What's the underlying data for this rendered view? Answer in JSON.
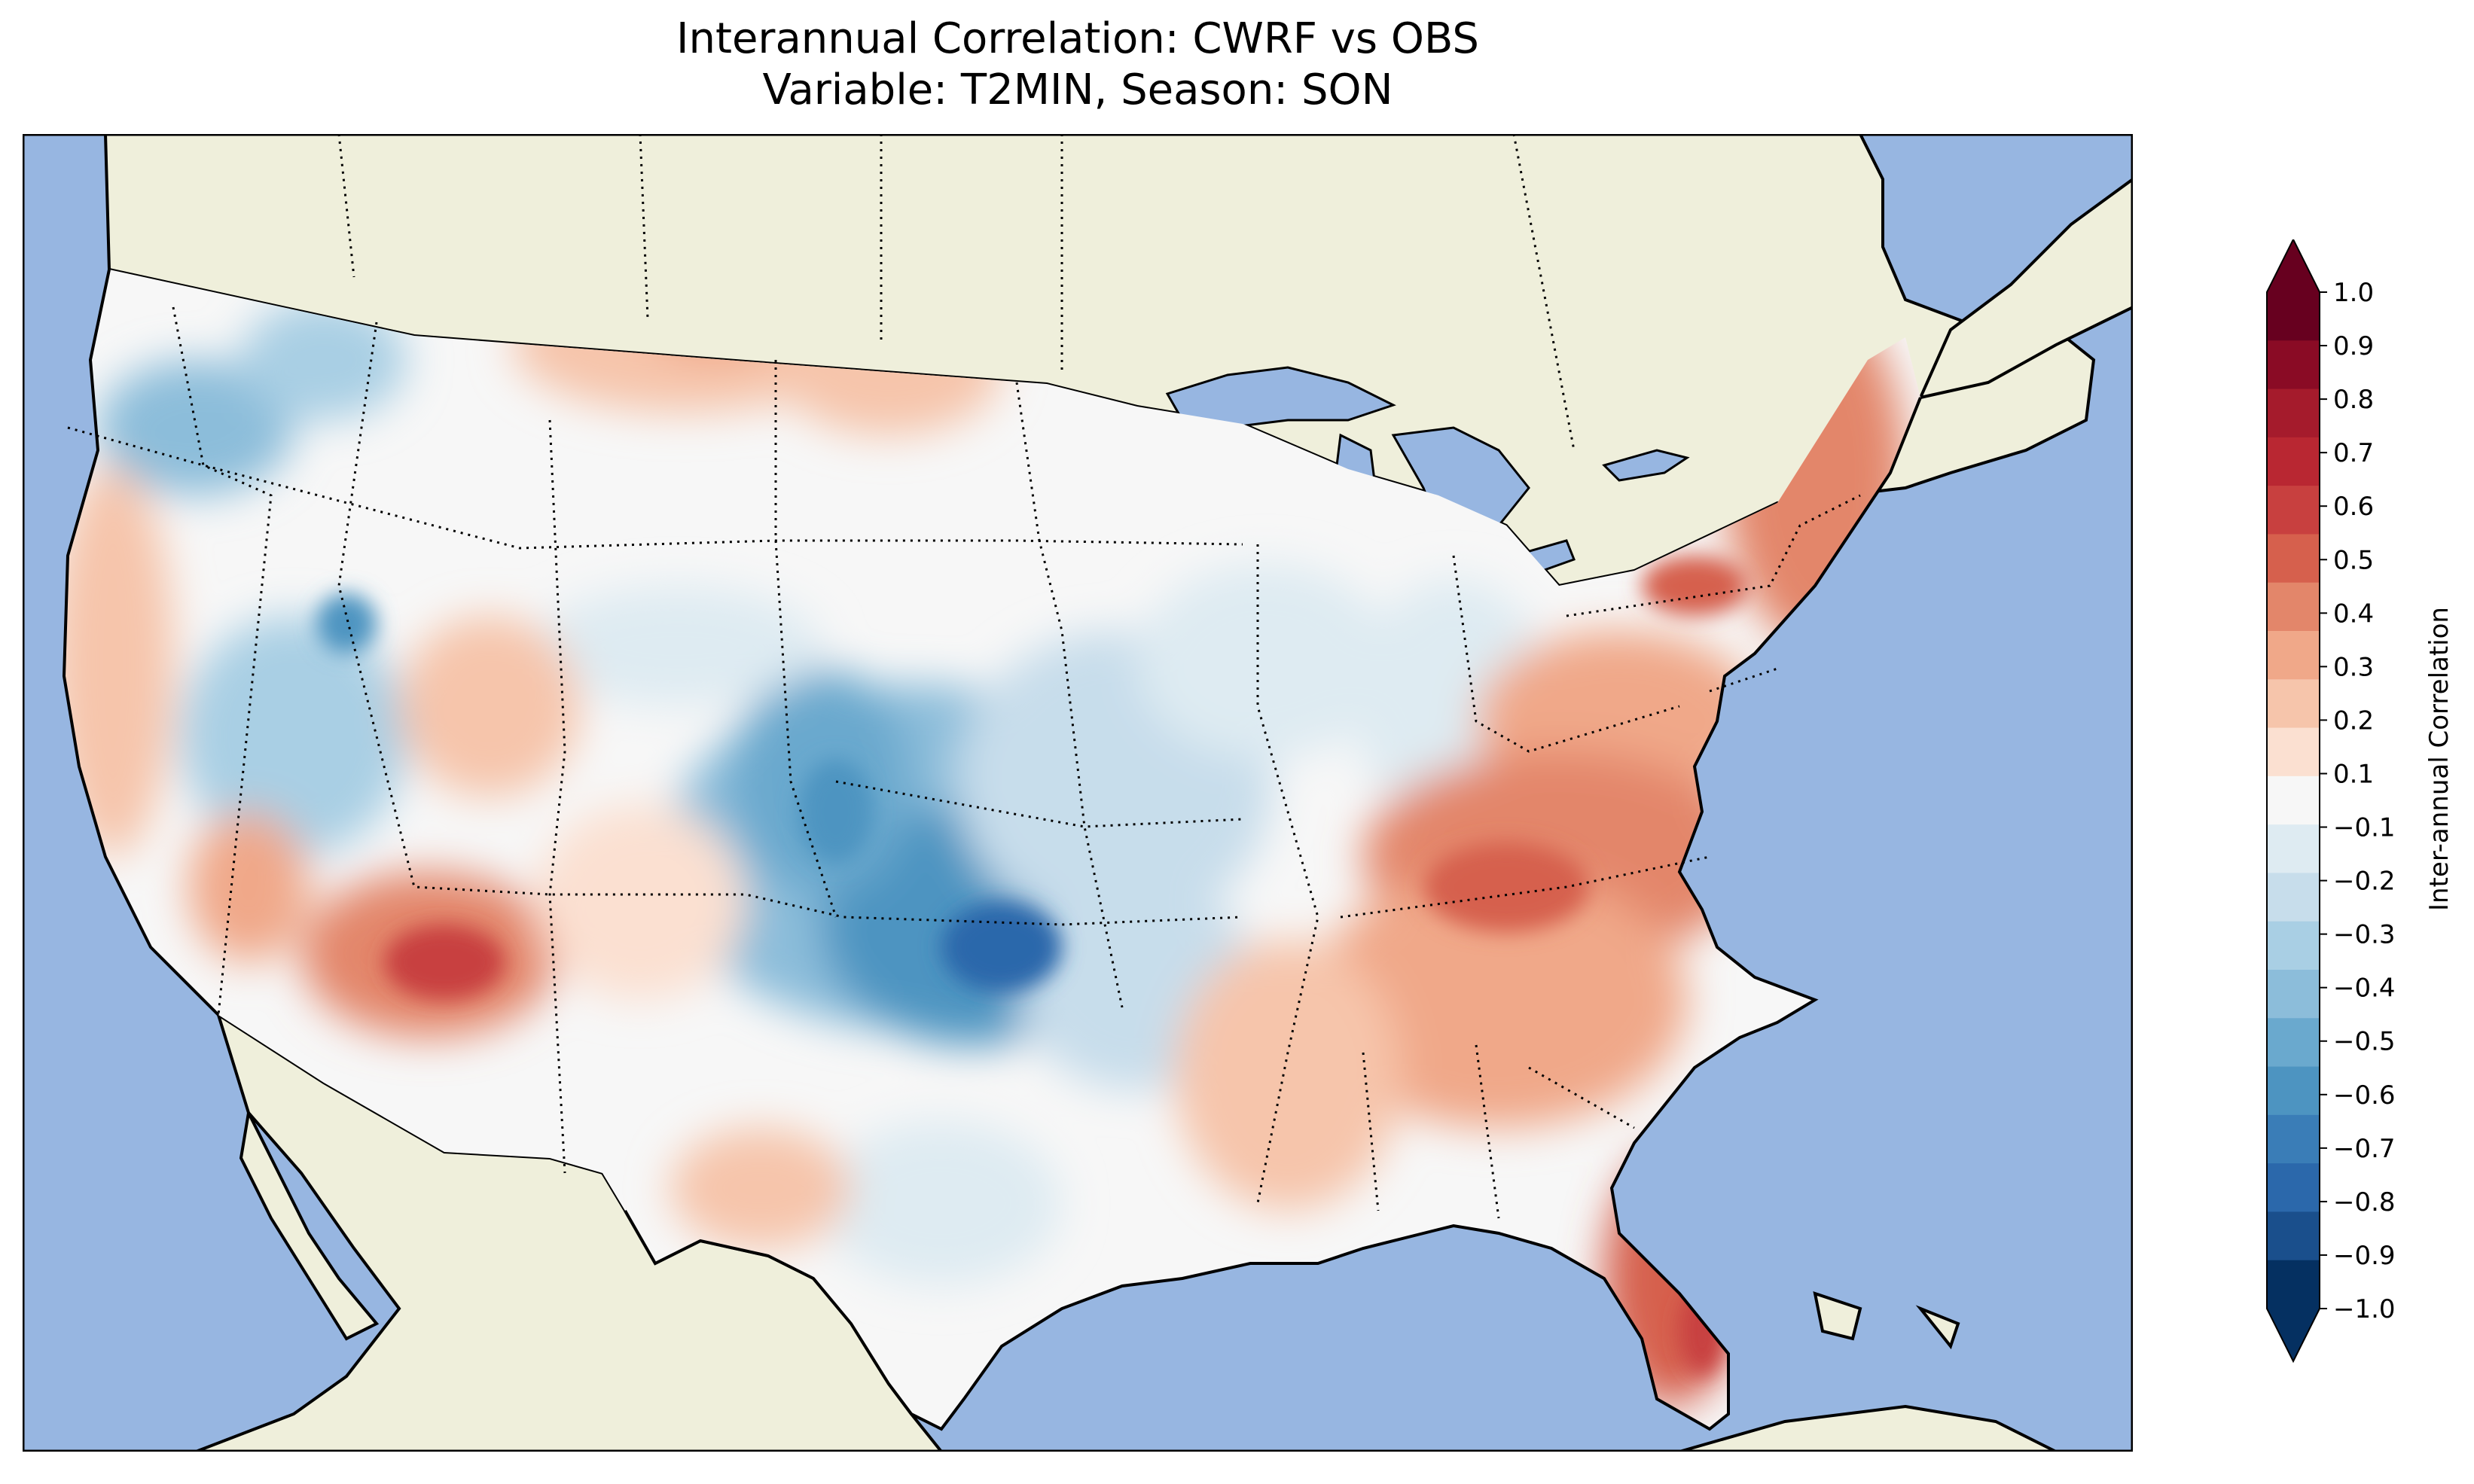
{
  "title": {
    "line1": "Interannual Correlation: CWRF vs OBS",
    "line2": "Variable: T2MIN, Season: SON"
  },
  "colorbar": {
    "label": "Inter-annual Correlation",
    "ticks": [
      "1.0",
      "0.9",
      "0.8",
      "0.7",
      "0.6",
      "0.5",
      "0.4",
      "0.3",
      "0.2",
      "0.1",
      "−0.1",
      "−0.2",
      "−0.3",
      "−0.4",
      "−0.5",
      "−0.6",
      "−0.7",
      "−0.8",
      "−0.9",
      "−1.0"
    ],
    "colors_top_to_bottom": [
      "#67001f",
      "#8a0b25",
      "#a51b2c",
      "#b92732",
      "#c8403f",
      "#d6604d",
      "#e3866a",
      "#f0a889",
      "#f6c5ab",
      "#fbe0d1",
      "#f7f7f7",
      "#deebf2",
      "#c7ddeb",
      "#a9cfe4",
      "#8cbdda",
      "#6aa9ce",
      "#4d94c1",
      "#3a7db7",
      "#2b68ab",
      "#1a4f8c",
      "#053061"
    ],
    "extend": "both"
  },
  "map": {
    "projection": "Lambert conformal",
    "colors": {
      "ocean": "#97b6e1",
      "land": "#efefdb",
      "lakes": "#97b6e1"
    },
    "features": [
      "coastlines",
      "country borders",
      "state borders (dotted)"
    ],
    "regions": [
      {
        "name": "Colorado-Kansas-Oklahoma interior",
        "value": -0.5
      },
      {
        "name": "Midwest",
        "value": -0.15
      },
      {
        "name": "Northern Rockies",
        "value": 0.3
      },
      {
        "name": "Arizona",
        "value": 0.5
      },
      {
        "name": "Southeast",
        "value": 0.4
      },
      {
        "name": "Florida",
        "value": 0.6
      },
      {
        "name": "Northeast",
        "value": 0.45
      },
      {
        "name": "Texas",
        "value": 0.05
      },
      {
        "name": "West Coast",
        "value": 0.2
      }
    ]
  }
}
